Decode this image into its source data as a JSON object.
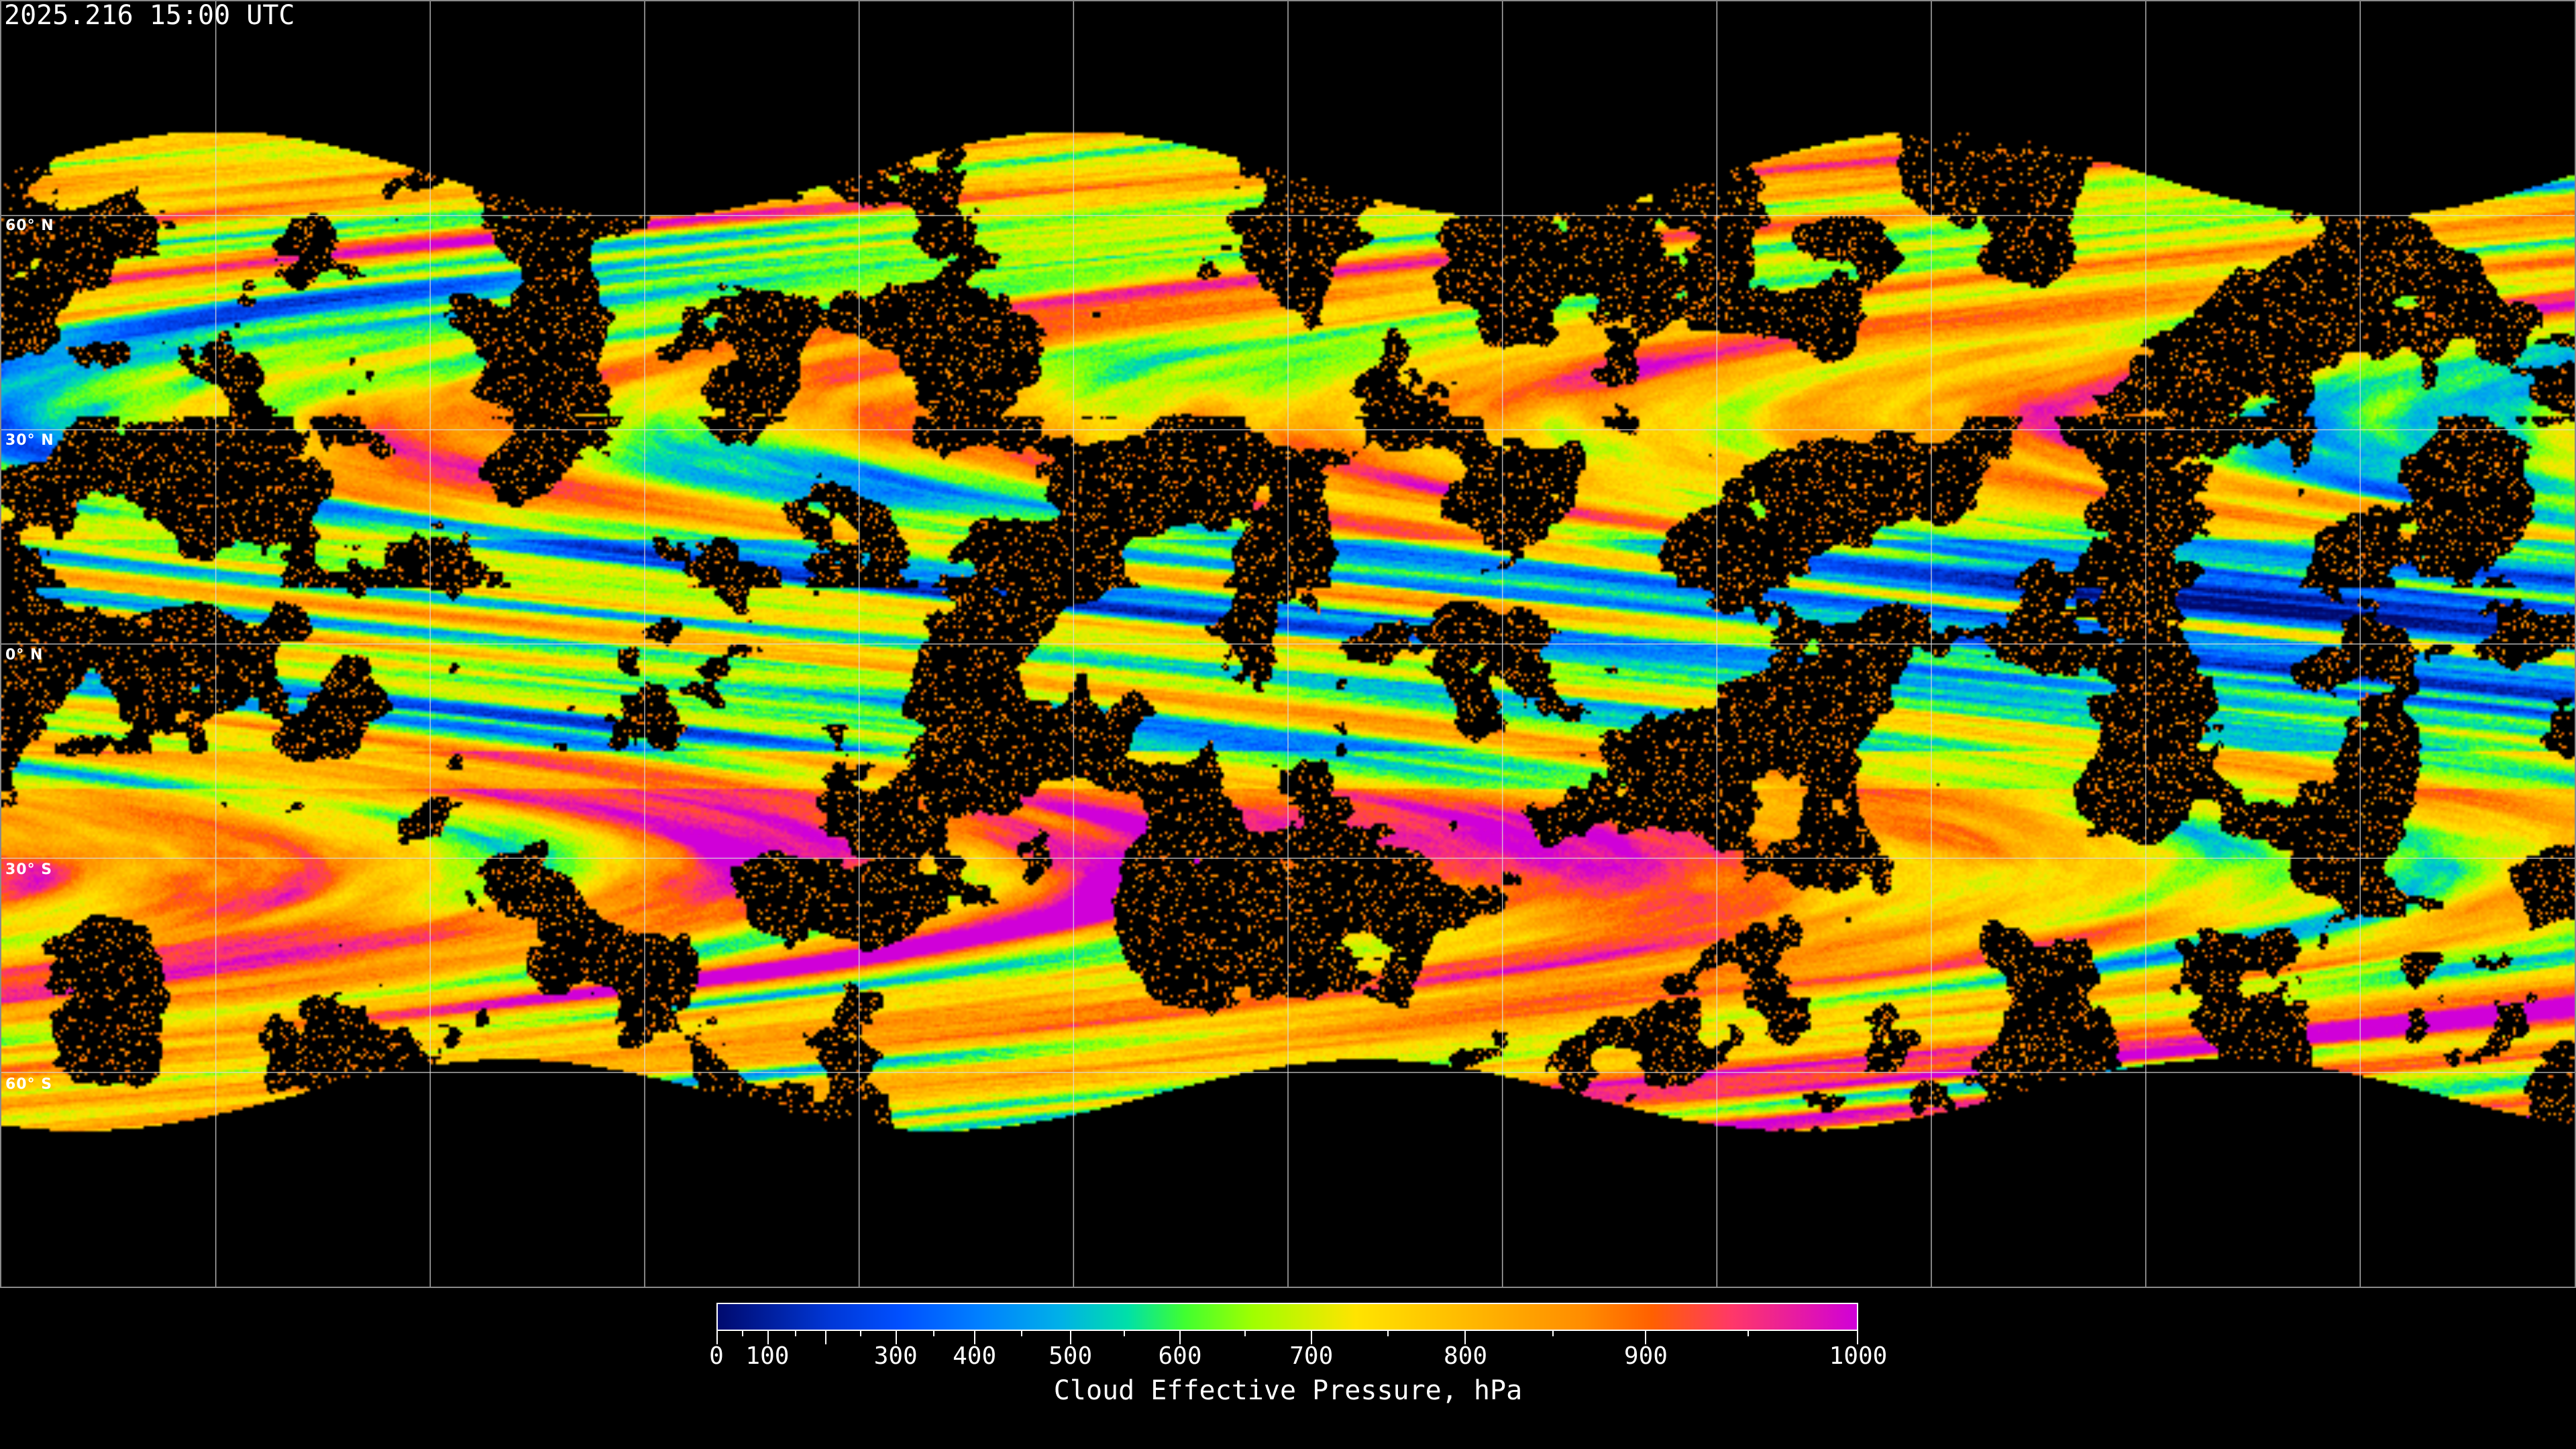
{
  "header": {
    "timestamp": "2025.216 15:00 UTC"
  },
  "map": {
    "projection": "equirectangular",
    "lat_labels": [
      "60° N",
      "30° N",
      "0° N",
      "30° S",
      "60° S"
    ],
    "lat_values": [
      60,
      30,
      0,
      -30,
      -60
    ],
    "lon_grid_spacing_deg": 30,
    "grid_color": "#ffffff",
    "coastline_color": "#ffffff",
    "no_data_color": "#000000"
  },
  "colorbar": {
    "title": "Cloud Effective Pressure, hPa",
    "range": [
      0,
      1000
    ],
    "labeled_ticks": [
      {
        "value": 0,
        "label": "0",
        "frac": 0
      },
      {
        "value": 100,
        "label": "100",
        "frac": 0.0446
      },
      {
        "value": 300,
        "label": "300",
        "frac": 0.157
      },
      {
        "value": 400,
        "label": "400",
        "frac": 0.226
      },
      {
        "value": 500,
        "label": "500",
        "frac": 0.31
      },
      {
        "value": 600,
        "label": "600",
        "frac": 0.406
      },
      {
        "value": 700,
        "label": "700",
        "frac": 0.521
      },
      {
        "value": 800,
        "label": "800",
        "frac": 0.656
      },
      {
        "value": 900,
        "label": "900",
        "frac": 0.814
      },
      {
        "value": 1000,
        "label": "1000",
        "frac": 1
      }
    ],
    "unlabeled_major_ticks": [
      {
        "value": 200,
        "frac": 0.0952
      }
    ],
    "minor_tick_fracs": [
      0.0223,
      0.069,
      0.126,
      0.19,
      0.267,
      0.357,
      0.463,
      0.588,
      0.733,
      0.904
    ],
    "colors": [
      {
        "frac": 0.0,
        "color": "#000a6e"
      },
      {
        "frac": 0.1,
        "color": "#0038d8"
      },
      {
        "frac": 0.16,
        "color": "#0050ff"
      },
      {
        "frac": 0.23,
        "color": "#0080ff"
      },
      {
        "frac": 0.3,
        "color": "#00b0e8"
      },
      {
        "frac": 0.36,
        "color": "#00e0a8"
      },
      {
        "frac": 0.41,
        "color": "#40ff30"
      },
      {
        "frac": 0.47,
        "color": "#a0ff00"
      },
      {
        "frac": 0.56,
        "color": "#ffe400"
      },
      {
        "frac": 0.66,
        "color": "#ffb800"
      },
      {
        "frac": 0.76,
        "color": "#ff8c00"
      },
      {
        "frac": 0.82,
        "color": "#ff6000"
      },
      {
        "frac": 0.89,
        "color": "#ff3868"
      },
      {
        "frac": 1.0,
        "color": "#d000d8"
      }
    ]
  }
}
